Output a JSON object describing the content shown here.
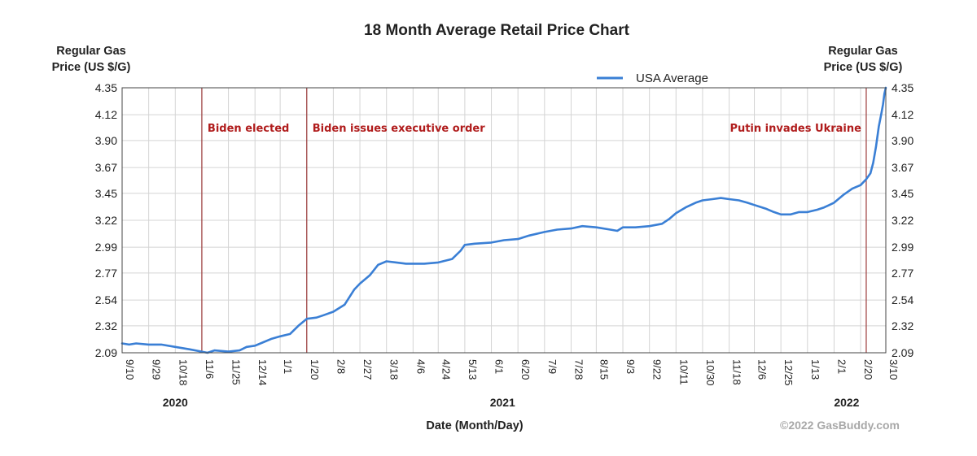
{
  "chart_data": {
    "type": "line",
    "title": "18 Month Average Retail Price Chart",
    "ylabel_left_line1": "Regular Gas",
    "ylabel_left_line2": "Price (US $/G)",
    "ylabel_right_line1": "Regular Gas",
    "ylabel_right_line2": "Price (US $/G)",
    "xlabel": "Date (Month/Day)",
    "ylim": [
      2.09,
      4.35
    ],
    "yticks": [
      "4.35",
      "4.12",
      "3.90",
      "3.67",
      "3.45",
      "3.22",
      "2.99",
      "2.77",
      "2.54",
      "2.32",
      "2.09"
    ],
    "x_range": [
      "2020-09-10",
      "2022-03-10"
    ],
    "xticks": [
      {
        "label": "9/10",
        "date": "2020-09-10"
      },
      {
        "label": "9/29",
        "date": "2020-09-29"
      },
      {
        "label": "10/18",
        "date": "2020-10-18"
      },
      {
        "label": "11/6",
        "date": "2020-11-06"
      },
      {
        "label": "11/25",
        "date": "2020-11-25"
      },
      {
        "label": "12/14",
        "date": "2020-12-14"
      },
      {
        "label": "1/1",
        "date": "2021-01-01"
      },
      {
        "label": "1/20",
        "date": "2021-01-20"
      },
      {
        "label": "2/8",
        "date": "2021-02-08"
      },
      {
        "label": "2/27",
        "date": "2021-02-27"
      },
      {
        "label": "3/18",
        "date": "2021-03-18"
      },
      {
        "label": "4/6",
        "date": "2021-04-06"
      },
      {
        "label": "4/24",
        "date": "2021-04-24"
      },
      {
        "label": "5/13",
        "date": "2021-05-13"
      },
      {
        "label": "6/1",
        "date": "2021-06-01"
      },
      {
        "label": "6/20",
        "date": "2021-06-20"
      },
      {
        "label": "7/9",
        "date": "2021-07-09"
      },
      {
        "label": "7/28",
        "date": "2021-07-28"
      },
      {
        "label": "8/15",
        "date": "2021-08-15"
      },
      {
        "label": "9/3",
        "date": "2021-09-03"
      },
      {
        "label": "9/22",
        "date": "2021-09-22"
      },
      {
        "label": "10/11",
        "date": "2021-10-11"
      },
      {
        "label": "10/30",
        "date": "2021-10-30"
      },
      {
        "label": "11/18",
        "date": "2021-11-18"
      },
      {
        "label": "12/6",
        "date": "2021-12-06"
      },
      {
        "label": "12/25",
        "date": "2021-12-25"
      },
      {
        "label": "1/13",
        "date": "2022-01-13"
      },
      {
        "label": "2/1",
        "date": "2022-02-01"
      },
      {
        "label": "2/20",
        "date": "2022-02-20"
      },
      {
        "label": "3/10",
        "date": "2022-03-10"
      }
    ],
    "years": [
      {
        "label": "2020",
        "date": "2020-10-18"
      },
      {
        "label": "2021",
        "date": "2021-06-09"
      },
      {
        "label": "2022",
        "date": "2022-02-10"
      }
    ],
    "grid": true,
    "legend_position": "top-right",
    "series": [
      {
        "name": "USA Average",
        "color": "#3a7fd5",
        "points": [
          [
            "2020-09-10",
            2.17
          ],
          [
            "2020-09-15",
            2.16
          ],
          [
            "2020-09-20",
            2.17
          ],
          [
            "2020-09-29",
            2.16
          ],
          [
            "2020-10-08",
            2.16
          ],
          [
            "2020-10-18",
            2.14
          ],
          [
            "2020-10-28",
            2.12
          ],
          [
            "2020-11-06",
            2.1
          ],
          [
            "2020-11-10",
            2.09
          ],
          [
            "2020-11-15",
            2.11
          ],
          [
            "2020-11-25",
            2.1
          ],
          [
            "2020-12-03",
            2.11
          ],
          [
            "2020-12-08",
            2.14
          ],
          [
            "2020-12-14",
            2.15
          ],
          [
            "2020-12-20",
            2.18
          ],
          [
            "2020-12-26",
            2.21
          ],
          [
            "2021-01-01",
            2.23
          ],
          [
            "2021-01-08",
            2.25
          ],
          [
            "2021-01-14",
            2.32
          ],
          [
            "2021-01-20",
            2.38
          ],
          [
            "2021-01-27",
            2.39
          ],
          [
            "2021-02-01",
            2.41
          ],
          [
            "2021-02-08",
            2.44
          ],
          [
            "2021-02-16",
            2.5
          ],
          [
            "2021-02-23",
            2.63
          ],
          [
            "2021-02-27",
            2.68
          ],
          [
            "2021-03-06",
            2.75
          ],
          [
            "2021-03-12",
            2.84
          ],
          [
            "2021-03-18",
            2.87
          ],
          [
            "2021-03-25",
            2.86
          ],
          [
            "2021-04-01",
            2.85
          ],
          [
            "2021-04-06",
            2.85
          ],
          [
            "2021-04-14",
            2.85
          ],
          [
            "2021-04-24",
            2.86
          ],
          [
            "2021-05-04",
            2.89
          ],
          [
            "2021-05-10",
            2.96
          ],
          [
            "2021-05-13",
            3.01
          ],
          [
            "2021-05-20",
            3.02
          ],
          [
            "2021-06-01",
            3.03
          ],
          [
            "2021-06-10",
            3.05
          ],
          [
            "2021-06-20",
            3.06
          ],
          [
            "2021-06-28",
            3.09
          ],
          [
            "2021-07-09",
            3.12
          ],
          [
            "2021-07-18",
            3.14
          ],
          [
            "2021-07-28",
            3.15
          ],
          [
            "2021-08-05",
            3.17
          ],
          [
            "2021-08-15",
            3.16
          ],
          [
            "2021-08-25",
            3.14
          ],
          [
            "2021-08-30",
            3.13
          ],
          [
            "2021-09-03",
            3.16
          ],
          [
            "2021-09-12",
            3.16
          ],
          [
            "2021-09-22",
            3.17
          ],
          [
            "2021-10-01",
            3.19
          ],
          [
            "2021-10-06",
            3.23
          ],
          [
            "2021-10-11",
            3.28
          ],
          [
            "2021-10-18",
            3.33
          ],
          [
            "2021-10-25",
            3.37
          ],
          [
            "2021-10-30",
            3.39
          ],
          [
            "2021-11-06",
            3.4
          ],
          [
            "2021-11-12",
            3.41
          ],
          [
            "2021-11-18",
            3.4
          ],
          [
            "2021-11-25",
            3.39
          ],
          [
            "2021-12-01",
            3.37
          ],
          [
            "2021-12-06",
            3.35
          ],
          [
            "2021-12-14",
            3.32
          ],
          [
            "2021-12-20",
            3.29
          ],
          [
            "2021-12-25",
            3.27
          ],
          [
            "2022-01-01",
            3.27
          ],
          [
            "2022-01-07",
            3.29
          ],
          [
            "2022-01-13",
            3.29
          ],
          [
            "2022-01-20",
            3.31
          ],
          [
            "2022-01-25",
            3.33
          ],
          [
            "2022-02-01",
            3.37
          ],
          [
            "2022-02-08",
            3.44
          ],
          [
            "2022-02-14",
            3.49
          ],
          [
            "2022-02-20",
            3.52
          ],
          [
            "2022-02-24",
            3.57
          ],
          [
            "2022-02-27",
            3.62
          ],
          [
            "2022-03-01",
            3.71
          ],
          [
            "2022-03-03",
            3.85
          ],
          [
            "2022-03-05",
            4.02
          ],
          [
            "2022-03-07",
            4.14
          ],
          [
            "2022-03-08",
            4.21
          ],
          [
            "2022-03-09",
            4.3
          ],
          [
            "2022-03-10",
            4.35
          ]
        ]
      }
    ],
    "annotations": [
      {
        "label": "Biden elected",
        "date": "2020-11-06",
        "color": "#b01c1c"
      },
      {
        "label": "Biden issues executive order",
        "date": "2021-01-20",
        "color": "#b01c1c"
      },
      {
        "label": "Putin invades Ukraine",
        "date": "2022-02-24",
        "color": "#b01c1c"
      }
    ],
    "credit": "©2022 GasBuddy.com"
  }
}
